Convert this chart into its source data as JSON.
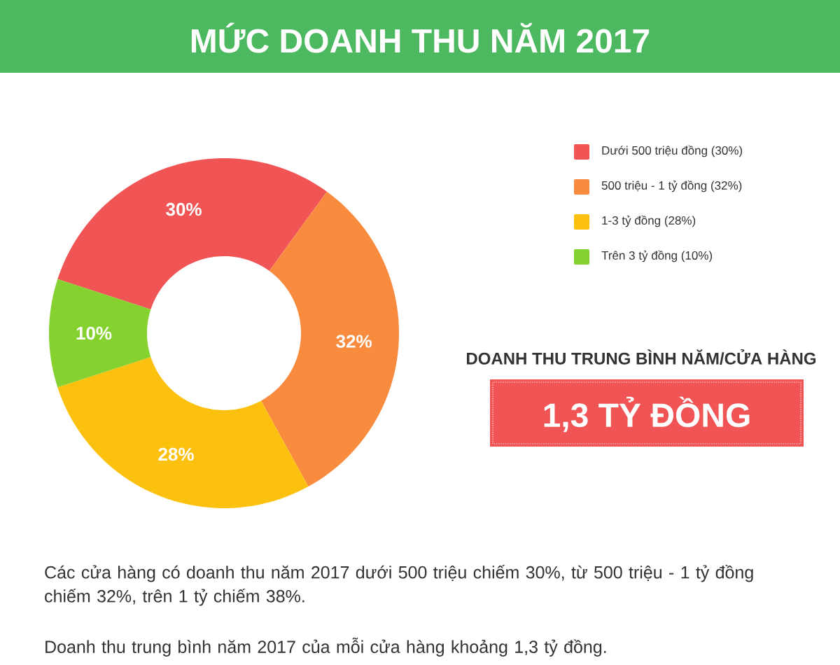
{
  "chart_data": {
    "type": "donut",
    "title": "MỨC DOANH THU NĂM 2017",
    "categories": [
      "Dưới 500 triệu đồng (30%)",
      "500 triệu - 1 tỷ đồng (32%)",
      "1-3 tỷ đồng (28%)",
      "Trên 3 tỷ đồng (10%)"
    ],
    "values": [
      30,
      32,
      28,
      10
    ],
    "value_labels": [
      "30%",
      "32%",
      "28%",
      "10%"
    ],
    "colors": [
      "#f05454",
      "#f98b3f",
      "#fcc10f",
      "#84d12f"
    ],
    "legend": "right",
    "annotations": [
      "DOANH THU TRUNG BÌNH NĂM/CỬA HÀNG",
      "1,3 TỶ ĐỒNG",
      "Các cửa hàng có doanh thu năm 2017 dưới 500 triệu chiếm 30%, từ 500 triệu - 1 tỷ đồng chiếm 32%, trên 1 tỷ chiếm 38%.",
      "Doanh thu trung bình năm 2017 của mỗi cửa hàng khoảng 1,3 tỷ đồng."
    ]
  }
}
